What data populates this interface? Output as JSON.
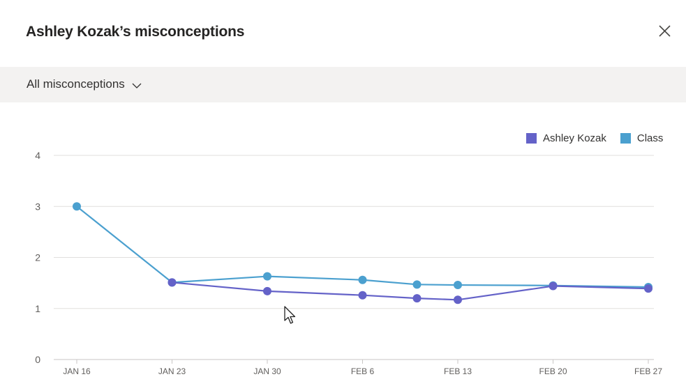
{
  "dialog": {
    "title": "Ashley Kozak’s misconceptions",
    "close_icon": "close-icon"
  },
  "filter": {
    "selected": "All misconceptions",
    "icon": "chevron-down-icon"
  },
  "colors": {
    "ashley": "#6462c8",
    "class": "#4ba0cf",
    "grid": "#e1dfdd",
    "axis_text": "#605e5c"
  },
  "chart_data": {
    "type": "line",
    "x": [
      "2000-01-16",
      "2000-01-23",
      "2000-01-30",
      "2000-02-06",
      "2000-02-10",
      "2000-02-13",
      "2000-02-20",
      "2000-02-27"
    ],
    "xticks": [
      "JAN 16",
      "JAN 23",
      "JAN 30",
      "FEB 6",
      "FEB 13",
      "FEB 20",
      "FEB 27"
    ],
    "xtick_dates": [
      "2000-01-16",
      "2000-01-23",
      "2000-01-30",
      "2000-02-06",
      "2000-02-13",
      "2000-02-20",
      "2000-02-27"
    ],
    "yticks": [
      "0",
      "1",
      "2",
      "3",
      "4"
    ],
    "ylim": [
      0,
      4
    ],
    "grid": true,
    "legend_position": "top-right",
    "series": [
      {
        "name": "Ashley Kozak",
        "color": "#6462c8",
        "points": [
          {
            "x": "2000-01-23",
            "y": 1.51
          },
          {
            "x": "2000-01-30",
            "y": 1.34
          },
          {
            "x": "2000-02-06",
            "y": 1.26
          },
          {
            "x": "2000-02-10",
            "y": 1.2
          },
          {
            "x": "2000-02-13",
            "y": 1.17
          },
          {
            "x": "2000-02-20",
            "y": 1.44
          },
          {
            "x": "2000-02-27",
            "y": 1.39
          }
        ]
      },
      {
        "name": "Class",
        "color": "#4ba0cf",
        "points": [
          {
            "x": "2000-01-16",
            "y": 3.0
          },
          {
            "x": "2000-01-23",
            "y": 1.51
          },
          {
            "x": "2000-01-30",
            "y": 1.63
          },
          {
            "x": "2000-02-06",
            "y": 1.56
          },
          {
            "x": "2000-02-10",
            "y": 1.47
          },
          {
            "x": "2000-02-13",
            "y": 1.46
          },
          {
            "x": "2000-02-20",
            "y": 1.45
          },
          {
            "x": "2000-02-27",
            "y": 1.42
          }
        ]
      }
    ]
  }
}
